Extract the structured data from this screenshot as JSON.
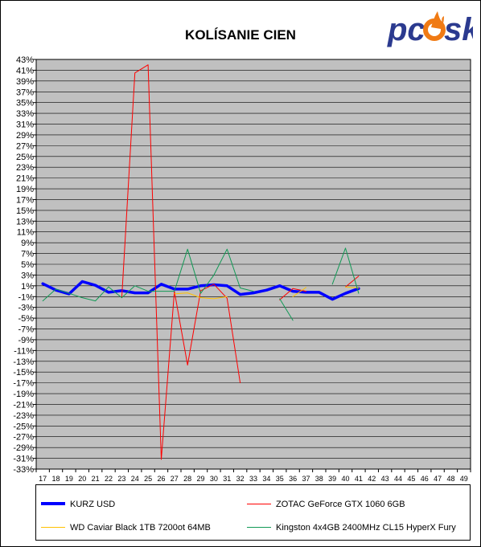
{
  "logo": {
    "text_left": "pc",
    "text_right": "sk",
    "icon": "flame-o-icon",
    "colors": {
      "text": "#2b3a8f",
      "flame": "#f07a14"
    }
  },
  "chart_data": {
    "type": "line",
    "title": "KOLÍSANIE CIEN",
    "xlabel": "",
    "ylabel": "",
    "categories": [
      "17",
      "18",
      "19",
      "20",
      "21",
      "22",
      "23",
      "24",
      "25",
      "26",
      "27",
      "28",
      "29",
      "30",
      "31",
      "32",
      "33",
      "34",
      "35",
      "36",
      "37",
      "38",
      "39",
      "40",
      "41",
      "42",
      "43",
      "44",
      "45",
      "46",
      "47",
      "48",
      "49"
    ],
    "ylim": [
      -33,
      43
    ],
    "ytick_step": 2,
    "grid": true,
    "plot_background": "#c0c0c0",
    "legend_position": "bottom",
    "series": [
      {
        "name": "KURZ USD",
        "color": "#0000ff",
        "width": 3.5,
        "values": [
          1.4,
          0.2,
          -0.5,
          1.8,
          1.1,
          -0.2,
          0.1,
          -0.3,
          -0.3,
          1.3,
          0.4,
          0.4,
          1.0,
          1.2,
          1.0,
          -0.6,
          -0.3,
          0.2,
          1.0,
          0.0,
          -0.2,
          -0.2,
          -1.5,
          -0.4,
          0.5,
          null,
          null,
          null,
          null,
          null,
          null,
          null,
          null
        ]
      },
      {
        "name": "ZOTAC GeForce GTX 1060 6GB",
        "color": "#ff0000",
        "width": 1,
        "values": [
          null,
          null,
          null,
          null,
          null,
          null,
          -1.2,
          40.5,
          42.0,
          -31.2,
          0.0,
          -13.7,
          0.1,
          1.3,
          -1.3,
          -17.0,
          null,
          null,
          -1.6,
          0.5,
          0.0,
          null,
          null,
          0.8,
          2.8,
          null,
          null,
          null,
          null,
          null,
          null,
          null,
          null
        ]
      },
      {
        "name": "WD Caviar Black 1TB 7200ot 64MB",
        "color": "#ffc000",
        "width": 1,
        "values": [
          null,
          null,
          null,
          null,
          null,
          null,
          null,
          null,
          null,
          null,
          -0.5,
          -0.3,
          -1.2,
          -1.4,
          -1.0,
          null,
          null,
          null,
          null,
          -1.0,
          0.7,
          null,
          null,
          0.8,
          0.6,
          null,
          null,
          null,
          null,
          null,
          null,
          null,
          null
        ]
      },
      {
        "name": "Kingston 4x4GB 2400MHz CL15 HyperX Fury",
        "color": "#119955",
        "width": 1,
        "values": [
          -1.8,
          0.4,
          -0.4,
          -1.2,
          -1.8,
          0.8,
          -1.2,
          1.0,
          0.0,
          0.0,
          0.0,
          7.8,
          -0.4,
          3.0,
          7.8,
          0.6,
          0.0,
          null,
          -1.4,
          -5.4,
          null,
          null,
          1.3,
          8.0,
          -0.4,
          null,
          null,
          null,
          null,
          null,
          null,
          null,
          null
        ]
      }
    ]
  }
}
